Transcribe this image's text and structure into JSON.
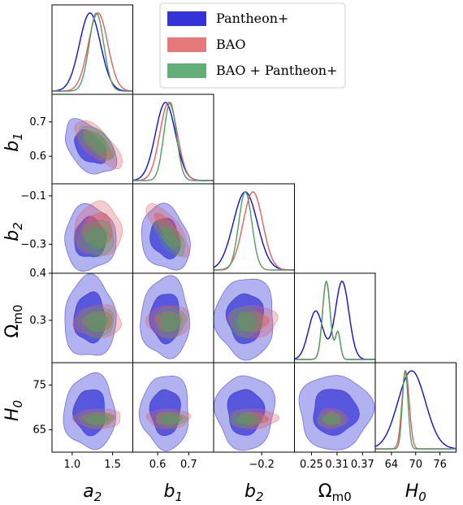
{
  "chart_data": {
    "type": "corner",
    "title": "",
    "parameters": [
      {
        "key": "a2",
        "symbol": "a",
        "sub": "2",
        "range": [
          0.75,
          1.75
        ],
        "ticks": [
          {
            "v": 1.0,
            "label": "1.0"
          },
          {
            "v": 1.5,
            "label": "1.5"
          }
        ]
      },
      {
        "key": "b1",
        "symbol": "b",
        "sub": "1",
        "range": [
          0.52,
          0.78
        ],
        "ticks": [
          {
            "v": 0.6,
            "label": "0.6"
          },
          {
            "v": 0.7,
            "label": "0.7"
          }
        ]
      },
      {
        "key": "b2",
        "symbol": "b",
        "sub": "2",
        "range": [
          -0.42,
          -0.05
        ],
        "ticks": [
          {
            "v": -0.1,
            "label": "−0.1"
          },
          {
            "v": -0.2,
            "label": "−0.2"
          },
          {
            "v": -0.3,
            "label": "−0.3"
          }
        ]
      },
      {
        "key": "Om0",
        "symbol": "Ω",
        "sub": "m0",
        "range": [
          0.21,
          0.4
        ],
        "ticks": [
          {
            "v": 0.25,
            "label": "0.25"
          },
          {
            "v": 0.3,
            "label": "0.3"
          },
          {
            "v": 0.31,
            "label": "0.31"
          },
          {
            "v": 0.37,
            "label": "0.37"
          },
          {
            "v": 0.4,
            "label": "0.4"
          }
        ]
      },
      {
        "key": "H0",
        "symbol": "H",
        "sub": "0",
        "range": [
          60,
          80
        ],
        "ticks": [
          {
            "v": 64,
            "label": "64"
          },
          {
            "v": 65,
            "label": "65"
          },
          {
            "v": 70,
            "label": "70"
          },
          {
            "v": 75,
            "label": "75"
          },
          {
            "v": 76,
            "label": "76"
          }
        ]
      }
    ],
    "series": [
      {
        "name": "Pantheon+",
        "color": "#0f0fd0",
        "mean": {
          "a2": 1.22,
          "b1": 0.625,
          "b2": -0.275,
          "Om0": 0.305,
          "H0": 69.0
        },
        "sd": {
          "a2": 0.13,
          "b1": 0.032,
          "b2": 0.055,
          "Om0": 0.035,
          "H0": 3.4
        },
        "corr": {
          "a2-b1": -0.45,
          "a2-b2": 0.0,
          "b1-b2": -0.2,
          "a2-Om0": 0.0,
          "b1-Om0": 0.0,
          "b2-Om0": 0.0,
          "a2-H0": 0.0,
          "b1-H0": 0.0,
          "b2-H0": 0.0,
          "Om0-H0": 0.0
        }
      },
      {
        "name": "BAO",
        "color": "#e06060",
        "mean": {
          "a2": 1.32,
          "b1": 0.635,
          "b2": -0.24,
          "Om0": 0.298,
          "H0": 67.5
        },
        "sd": {
          "a2": 0.12,
          "b1": 0.028,
          "b2": 0.045,
          "Om0": 0.014,
          "H0": 0.9
        },
        "corr": {
          "a2-b1": -0.72,
          "a2-b2": 0.0,
          "b1-b2": -0.8,
          "a2-Om0": 0.0,
          "b1-Om0": 0.0,
          "b2-Om0": 0.0,
          "a2-H0": 0.0,
          "b1-H0": 0.0,
          "b2-H0": 0.0,
          "Om0-H0": 0.0
        }
      },
      {
        "name": "BAO + Pantheon+",
        "color": "#4aa060",
        "mean": {
          "a2": 1.3,
          "b1": 0.64,
          "b2": -0.275,
          "Om0": 0.297,
          "H0": 67.4
        },
        "sd": {
          "a2": 0.09,
          "b1": 0.02,
          "b2": 0.03,
          "Om0": 0.013,
          "H0": 0.7
        },
        "corr": {
          "a2-b1": -0.6,
          "a2-b2": 0.0,
          "b1-b2": -0.65,
          "a2-Om0": 0.0,
          "b1-Om0": 0.0,
          "b2-Om0": 0.0,
          "a2-H0": 0.0,
          "b1-H0": 0.0,
          "b2-H0": 0.0,
          "Om0-H0": 0.0
        }
      }
    ],
    "legend_position": "top-right",
    "grid": false
  }
}
